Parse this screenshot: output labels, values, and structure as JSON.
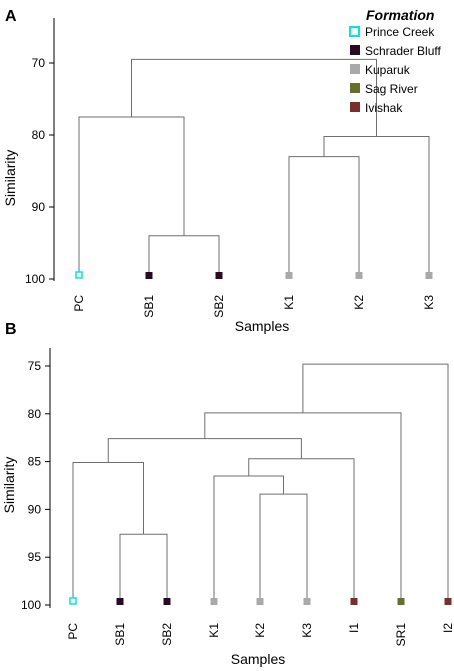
{
  "formations": [
    {
      "name": "Prince Creek",
      "color": "#00e5e5",
      "hollow": true
    },
    {
      "name": "Schrader Bluff",
      "color": "#2a0a22",
      "hollow": false
    },
    {
      "name": "Kuparuk",
      "color": "#a9a9a9",
      "hollow": false
    },
    {
      "name": "Sag River",
      "color": "#66702a",
      "hollow": false
    },
    {
      "name": "Ivishak",
      "color": "#7a2e2e",
      "hollow": false
    }
  ],
  "legend_title": "Formation",
  "chart_data": [
    {
      "panel": "A",
      "type": "dendrogram",
      "xlabel": "Samples",
      "ylabel": "Similarity",
      "ylim": [
        64,
        100
      ],
      "yticks": [
        70,
        80,
        90,
        100
      ],
      "leaves": [
        {
          "label": "PC",
          "formation": 0
        },
        {
          "label": "SB1",
          "formation": 1
        },
        {
          "label": "SB2",
          "formation": 1
        },
        {
          "label": "K1",
          "formation": 2
        },
        {
          "label": "K2",
          "formation": 2
        },
        {
          "label": "K3",
          "formation": 2
        }
      ],
      "merges": [
        {
          "a": "L1",
          "b": "L2",
          "h": 94
        },
        {
          "a": "L4",
          "b": "L3",
          "h": 83
        },
        {
          "a": "N1",
          "b": "L5",
          "h": 80.2
        },
        {
          "a": "L0",
          "b": "N0",
          "h": 77.5
        },
        {
          "a": "N3",
          "b": "N2",
          "h": 69.5
        }
      ]
    },
    {
      "panel": "B",
      "type": "dendrogram",
      "xlabel": "Samples",
      "ylabel": "Similarity",
      "ylim": [
        73,
        100
      ],
      "yticks": [
        75,
        80,
        85,
        90,
        95,
        100
      ],
      "leaves": [
        {
          "label": "PC",
          "formation": 0
        },
        {
          "label": "SB1",
          "formation": 1
        },
        {
          "label": "SB2",
          "formation": 1
        },
        {
          "label": "K1",
          "formation": 2
        },
        {
          "label": "K2",
          "formation": 2
        },
        {
          "label": "K3",
          "formation": 2
        },
        {
          "label": "I1",
          "formation": 4
        },
        {
          "label": "SR1",
          "formation": 3
        },
        {
          "label": "I2",
          "formation": 4
        }
      ],
      "merges": [
        {
          "a": "L1",
          "b": "L2",
          "h": 92.6
        },
        {
          "a": "L0",
          "b": "N0",
          "h": 85.1
        },
        {
          "a": "L4",
          "b": "L5",
          "h": 88.4
        },
        {
          "a": "L3",
          "b": "N2",
          "h": 86.5
        },
        {
          "a": "N3",
          "b": "L6",
          "h": 84.7
        },
        {
          "a": "N1",
          "b": "N4",
          "h": 82.6
        },
        {
          "a": "N5",
          "b": "L7",
          "h": 79.9
        },
        {
          "a": "N6",
          "b": "L8",
          "h": 74.8
        }
      ]
    }
  ]
}
